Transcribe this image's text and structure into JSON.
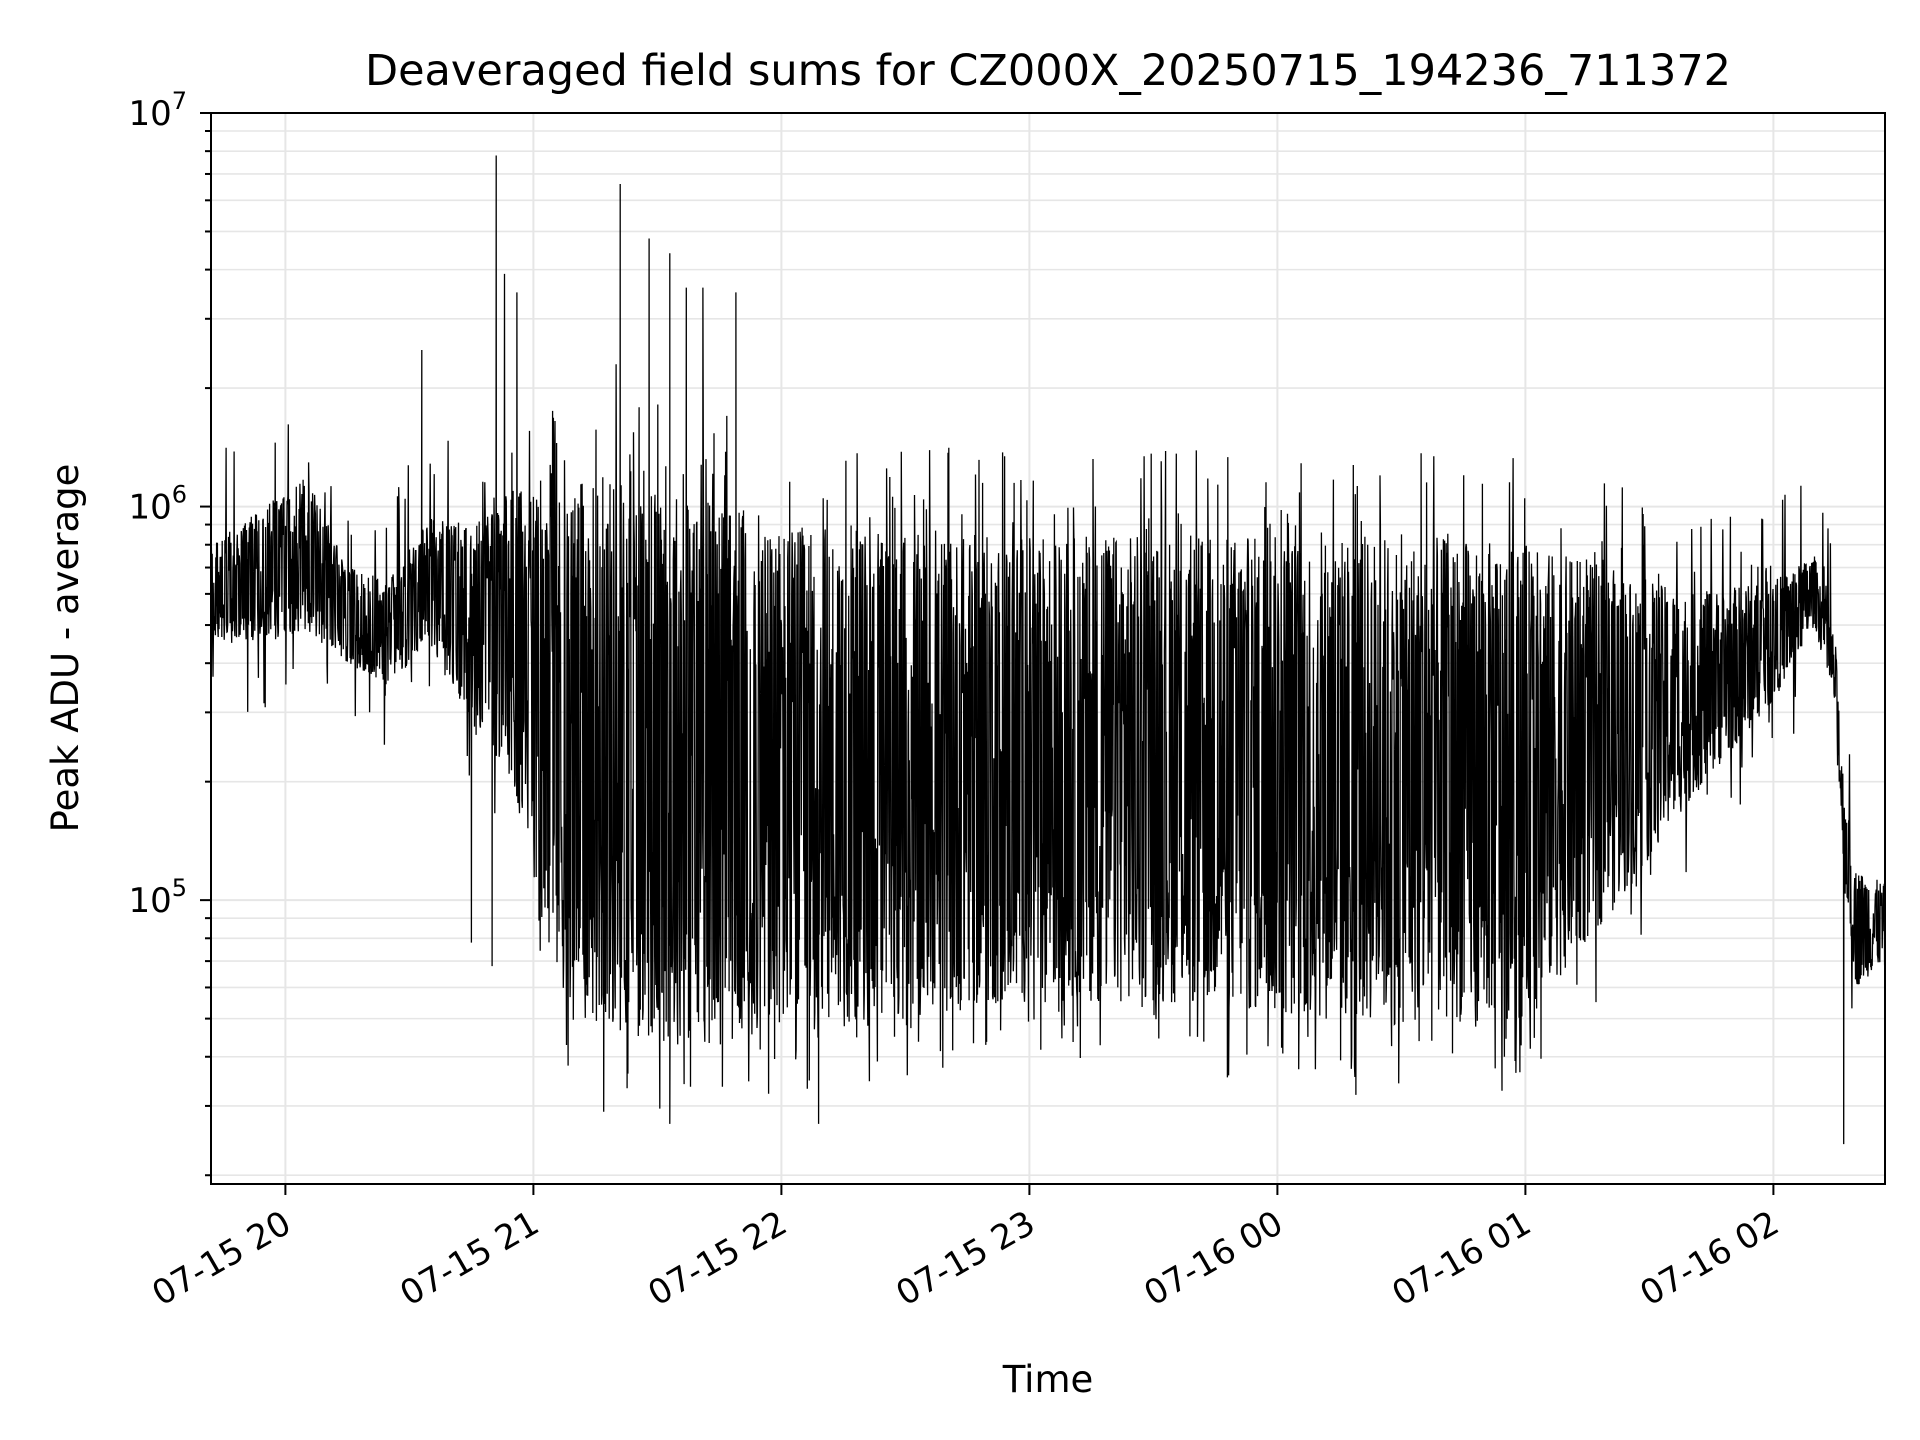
{
  "chart_data": {
    "type": "line",
    "title": "Deaveraged field sums for CZ000X_20250715_194236_711372",
    "xlabel": "Time",
    "ylabel": "Peak ADU - average",
    "yscale": "log",
    "ylim": [
      19000,
      10000000
    ],
    "xlim": [
      "2025-07-15T19:42",
      "2025-07-16T02:27"
    ],
    "grid": true,
    "line_color": "#000000",
    "grid_color": "#e6e6e6",
    "x_ticks": [
      {
        "t": "2025-07-15T20:00",
        "label": "07-15 20"
      },
      {
        "t": "2025-07-15T21:00",
        "label": "07-15 21"
      },
      {
        "t": "2025-07-15T22:00",
        "label": "07-15 22"
      },
      {
        "t": "2025-07-15T23:00",
        "label": "07-15 23"
      },
      {
        "t": "2025-07-16T00:00",
        "label": "07-16 00"
      },
      {
        "t": "2025-07-16T01:00",
        "label": "07-16 01"
      },
      {
        "t": "2025-07-16T02:00",
        "label": "07-16 02"
      }
    ],
    "y_ticks": [
      {
        "value": 100000,
        "mantissa": "10",
        "exp": "5"
      },
      {
        "value": 1000000,
        "mantissa": "10",
        "exp": "6"
      },
      {
        "value": 10000000,
        "mantissa": "10",
        "exp": "7"
      }
    ],
    "series": [
      {
        "envelope": [
          {
            "t": "2025-07-15T19:42",
            "upper": 800000,
            "lower": 450000
          },
          {
            "t": "2025-07-15T19:55",
            "upper": 1000000,
            "lower": 450000
          },
          {
            "t": "2025-07-15T20:05",
            "upper": 1200000,
            "lower": 480000
          },
          {
            "t": "2025-07-15T20:15",
            "upper": 700000,
            "lower": 400000
          },
          {
            "t": "2025-07-15T20:25",
            "upper": 650000,
            "lower": 350000
          },
          {
            "t": "2025-07-15T20:35",
            "upper": 950000,
            "lower": 450000
          },
          {
            "t": "2025-07-15T20:45",
            "upper": 900000,
            "lower": 280000
          },
          {
            "t": "2025-07-15T20:55",
            "upper": 1100000,
            "lower": 200000
          },
          {
            "t": "2025-07-15T21:05",
            "upper": 1100000,
            "lower": 60000
          },
          {
            "t": "2025-07-15T21:20",
            "upper": 1200000,
            "lower": 45000
          },
          {
            "t": "2025-07-15T21:40",
            "upper": 1100000,
            "lower": 42000
          },
          {
            "t": "2025-07-15T22:00",
            "upper": 900000,
            "lower": 45000
          },
          {
            "t": "2025-07-15T22:30",
            "upper": 850000,
            "lower": 50000
          },
          {
            "t": "2025-07-15T23:00",
            "upper": 850000,
            "lower": 55000
          },
          {
            "t": "2025-07-15T23:30",
            "upper": 850000,
            "lower": 55000
          },
          {
            "t": "2025-07-16T00:00",
            "upper": 850000,
            "lower": 50000
          },
          {
            "t": "2025-07-16T00:30",
            "upper": 850000,
            "lower": 48000
          },
          {
            "t": "2025-07-16T01:00",
            "upper": 800000,
            "lower": 50000
          },
          {
            "t": "2025-07-16T01:20",
            "upper": 700000,
            "lower": 90000
          },
          {
            "t": "2025-07-16T01:40",
            "upper": 600000,
            "lower": 180000
          },
          {
            "t": "2025-07-16T02:00",
            "upper": 650000,
            "lower": 320000
          },
          {
            "t": "2025-07-16T02:10",
            "upper": 750000,
            "lower": 500000
          },
          {
            "t": "2025-07-16T02:15",
            "upper": 450000,
            "lower": 300000
          },
          {
            "t": "2025-07-16T02:17",
            "upper": 200000,
            "lower": 120000
          },
          {
            "t": "2025-07-16T02:20",
            "upper": 120000,
            "lower": 60000
          },
          {
            "t": "2025-07-16T02:27",
            "upper": 110000,
            "lower": 70000
          }
        ],
        "spikes": [
          {
            "t": "2025-07-15T20:33",
            "value": 2500000
          },
          {
            "t": "2025-07-15T20:51",
            "value": 7800000
          },
          {
            "t": "2025-07-15T20:53",
            "value": 3900000
          },
          {
            "t": "2025-07-15T20:56",
            "value": 3500000
          },
          {
            "t": "2025-07-15T21:20",
            "value": 2300000
          },
          {
            "t": "2025-07-15T21:21",
            "value": 6600000
          },
          {
            "t": "2025-07-15T21:28",
            "value": 4800000
          },
          {
            "t": "2025-07-15T21:33",
            "value": 4400000
          },
          {
            "t": "2025-07-15T21:37",
            "value": 3600000
          },
          {
            "t": "2025-07-15T21:41",
            "value": 3600000
          },
          {
            "t": "2025-07-15T21:49",
            "value": 3500000
          },
          {
            "t": "2025-07-15T20:45",
            "value": 78000
          },
          {
            "t": "2025-07-15T20:50",
            "value": 68000
          },
          {
            "t": "2025-07-15T21:17",
            "value": 29000
          },
          {
            "t": "2025-07-15T21:33",
            "value": 27000
          },
          {
            "t": "2025-07-15T22:09",
            "value": 27000
          },
          {
            "t": "2025-07-16T00:19",
            "value": 32000
          },
          {
            "t": "2025-07-16T02:17",
            "value": 24000
          }
        ]
      }
    ]
  }
}
